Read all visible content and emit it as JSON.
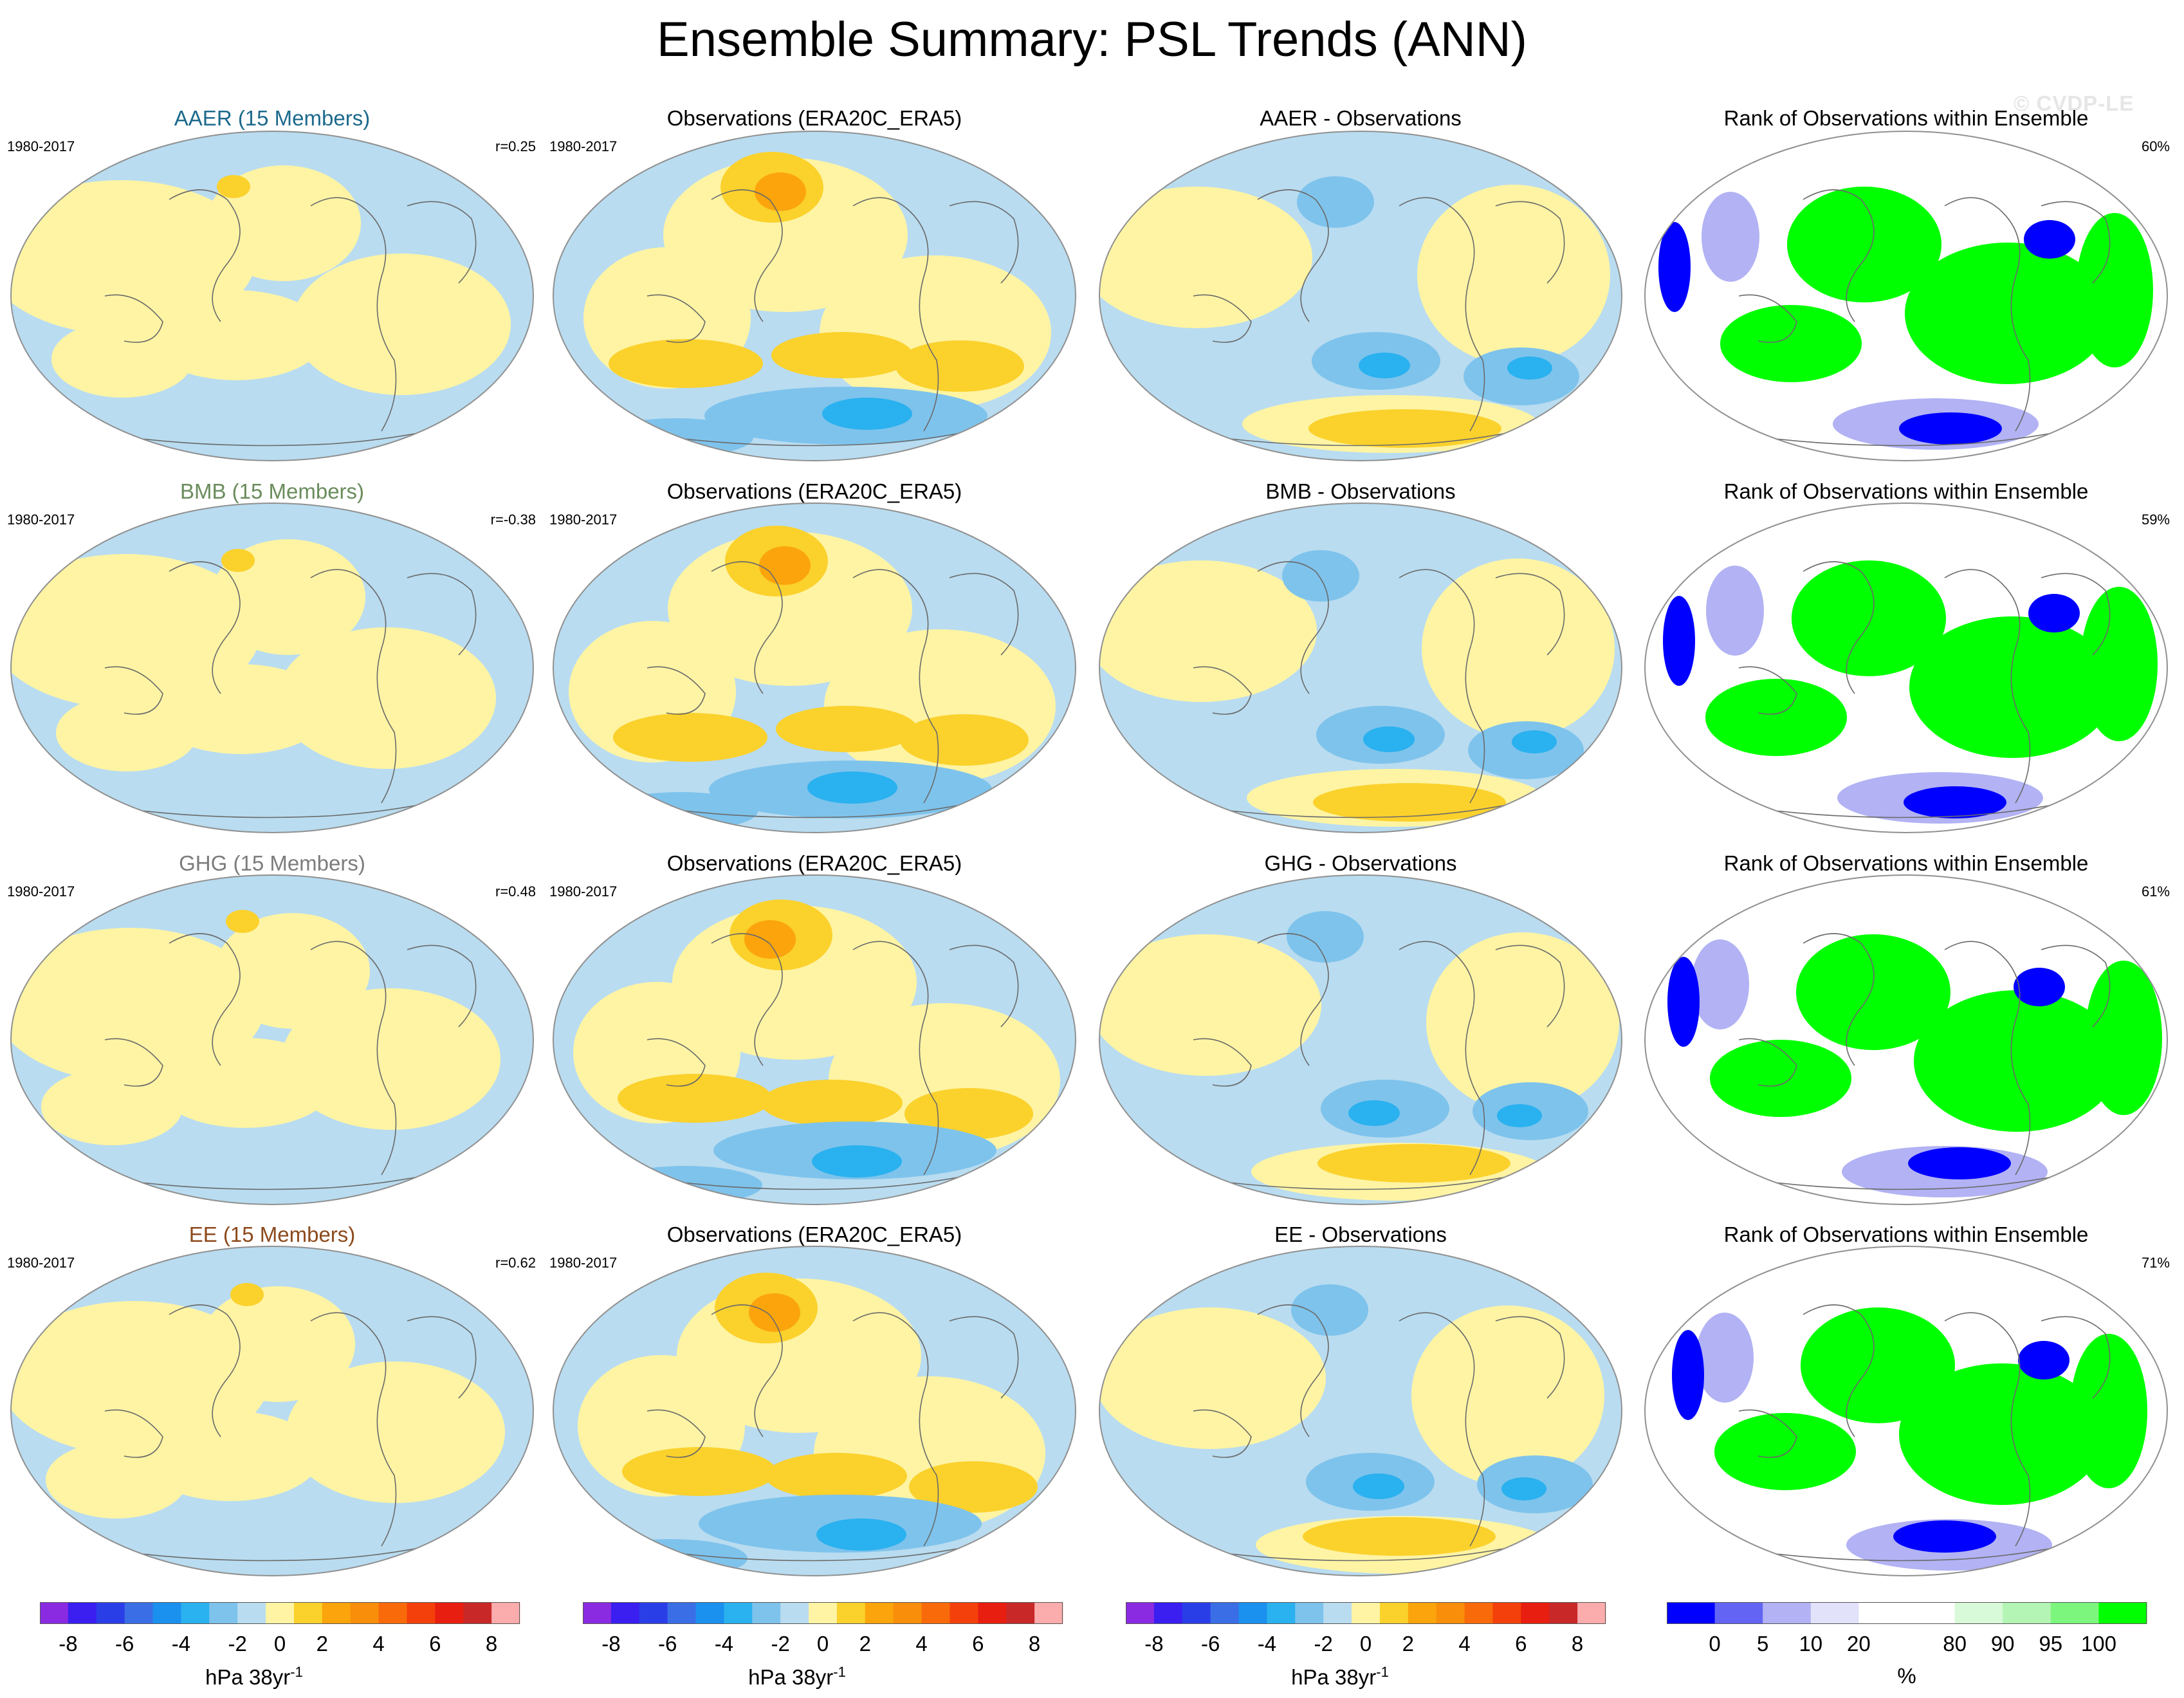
{
  "page": {
    "title": "Ensemble Summary: PSL Trends (ANN)",
    "watermark": "© CVDP-LE"
  },
  "colors": {
    "blue_light": "#b9dcf0",
    "yellow_light": "#fef4a4",
    "blue_mid": "#7ec3ec",
    "blue_strong": "#2ab1ef",
    "orange_mid": "#fbd12c",
    "orange_strong": "#fba40b",
    "rank_white": "#ffffff",
    "rank_green": "#00ff00",
    "rank_blue": "#0000ff",
    "rank_lavender": "#b2b2f4",
    "map_border": "#909090"
  },
  "chart_data": [
    {
      "type": "heatmap",
      "row": 1,
      "title": "AAER (15 Members)",
      "title_color": "#1d6a8c",
      "period": "1980-2017",
      "stat": "r=0.25"
    },
    {
      "type": "heatmap",
      "row": 1,
      "title": "Observations (ERA20C_ERA5)",
      "title_color": "#000000",
      "period": "1980-2017",
      "stat": ""
    },
    {
      "type": "heatmap",
      "row": 1,
      "title": "AAER - Observations",
      "title_color": "#000000",
      "period": "",
      "stat": ""
    },
    {
      "type": "heatmap",
      "row": 1,
      "title": "Rank of Observations within Ensemble",
      "title_color": "#000000",
      "period": "",
      "stat": "60%"
    },
    {
      "type": "heatmap",
      "row": 2,
      "title": "BMB (15 Members)",
      "title_color": "#6a8c5c",
      "period": "1980-2017",
      "stat": "r=-0.38"
    },
    {
      "type": "heatmap",
      "row": 2,
      "title": "Observations (ERA20C_ERA5)",
      "title_color": "#000000",
      "period": "1980-2017",
      "stat": ""
    },
    {
      "type": "heatmap",
      "row": 2,
      "title": "BMB - Observations",
      "title_color": "#000000",
      "period": "",
      "stat": ""
    },
    {
      "type": "heatmap",
      "row": 2,
      "title": "Rank of Observations within Ensemble",
      "title_color": "#000000",
      "period": "",
      "stat": "59%"
    },
    {
      "type": "heatmap",
      "row": 3,
      "title": "GHG (15 Members)",
      "title_color": "#7c7c7c",
      "period": "1980-2017",
      "stat": "r=0.48"
    },
    {
      "type": "heatmap",
      "row": 3,
      "title": "Observations (ERA20C_ERA5)",
      "title_color": "#000000",
      "period": "1980-2017",
      "stat": ""
    },
    {
      "type": "heatmap",
      "row": 3,
      "title": "GHG - Observations",
      "title_color": "#000000",
      "period": "",
      "stat": ""
    },
    {
      "type": "heatmap",
      "row": 3,
      "title": "Rank of Observations within Ensemble",
      "title_color": "#000000",
      "period": "",
      "stat": "61%"
    },
    {
      "type": "heatmap",
      "row": 4,
      "title": "EE (15 Members)",
      "title_color": "#8c4a1c",
      "period": "1980-2017",
      "stat": "r=0.62"
    },
    {
      "type": "heatmap",
      "row": 4,
      "title": "Observations (ERA20C_ERA5)",
      "title_color": "#000000",
      "period": "1980-2017",
      "stat": ""
    },
    {
      "type": "heatmap",
      "row": 4,
      "title": "EE - Observations",
      "title_color": "#000000",
      "period": "",
      "stat": ""
    },
    {
      "type": "heatmap",
      "row": 4,
      "title": "Rank of Observations within Ensemble",
      "title_color": "#000000",
      "period": "",
      "stat": "71%"
    }
  ],
  "colorbars": [
    {
      "kind": "trend",
      "units": "hPa 38yr",
      "units_sup": "-1",
      "tick_labels": [
        "-8",
        "-6",
        "-4",
        "-2",
        "0",
        "2",
        "4",
        "6",
        "8"
      ],
      "colors": [
        "#8a2be2",
        "#3a1ff0",
        "#2a3ee8",
        "#3a6ee6",
        "#1a90ef",
        "#2ab1ef",
        "#7ec3ec",
        "#b9dcf0",
        "#fef4a4",
        "#fbd12c",
        "#fba40b",
        "#f98e0a",
        "#f86a0a",
        "#f4400a",
        "#e81e10",
        "#c82828",
        "#fbacac"
      ]
    },
    {
      "kind": "trend",
      "units": "hPa 38yr",
      "units_sup": "-1",
      "tick_labels": [
        "-8",
        "-6",
        "-4",
        "-2",
        "0",
        "2",
        "4",
        "6",
        "8"
      ],
      "colors": [
        "#8a2be2",
        "#3a1ff0",
        "#2a3ee8",
        "#3a6ee6",
        "#1a90ef",
        "#2ab1ef",
        "#7ec3ec",
        "#b9dcf0",
        "#fef4a4",
        "#fbd12c",
        "#fba40b",
        "#f98e0a",
        "#f86a0a",
        "#f4400a",
        "#e81e10",
        "#c82828",
        "#fbacac"
      ]
    },
    {
      "kind": "trend",
      "units": "hPa 38yr",
      "units_sup": "-1",
      "tick_labels": [
        "-8",
        "-6",
        "-4",
        "-2",
        "0",
        "2",
        "4",
        "6",
        "8"
      ],
      "colors": [
        "#8a2be2",
        "#3a1ff0",
        "#2a3ee8",
        "#3a6ee6",
        "#1a90ef",
        "#2ab1ef",
        "#7ec3ec",
        "#b9dcf0",
        "#fef4a4",
        "#fbd12c",
        "#fba40b",
        "#f98e0a",
        "#f86a0a",
        "#f4400a",
        "#e81e10",
        "#c82828",
        "#fbacac"
      ]
    },
    {
      "kind": "rank",
      "units": "%",
      "units_sup": "",
      "tick_labels": [
        "0",
        "5",
        "10",
        "20",
        "80",
        "90",
        "95",
        "100"
      ],
      "colors": [
        "#0000ff",
        "#6464f4",
        "#b2b2f4",
        "#e2e2fa",
        "#ffffff",
        "#ffffff",
        "#d8fad8",
        "#b4f4b4",
        "#7cf67c",
        "#00ff00"
      ]
    }
  ]
}
